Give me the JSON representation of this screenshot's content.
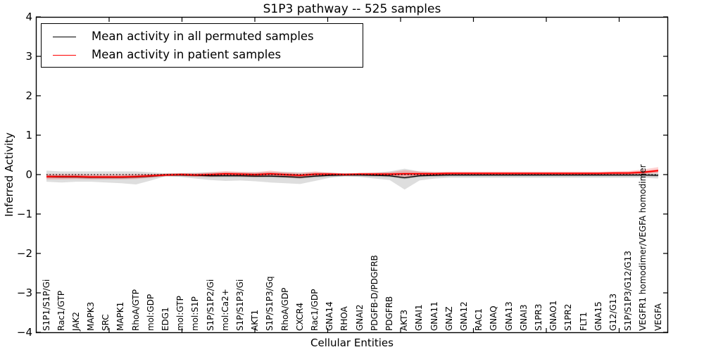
{
  "chart_data": {
    "type": "line",
    "title": "S1P3 pathway -- 525 samples",
    "xlabel": "Cellular Entities",
    "ylabel": "Inferred Activity",
    "ylim": [
      -4,
      4
    ],
    "yticks": [
      -4,
      -3,
      -2,
      -1,
      0,
      1,
      2,
      3,
      4
    ],
    "grid": false,
    "zero_line_style": "dotted",
    "legend_position": "upper left",
    "categories": [
      "S1P1/S1P/Gi",
      "Rac1/GTP",
      "JAK2",
      "MAPK3",
      "SRC",
      "MAPK1",
      "RhoA/GTP",
      "mol:GDP",
      "EDG1",
      "mol:GTP",
      "mol:S1P",
      "S1P/S1P2/Gi",
      "mol:Ca2+",
      "S1P/S1P3/Gi",
      "AKT1",
      "S1P/S1P3/Gq",
      "RhoA/GDP",
      "CXCR4",
      "Rac1/GDP",
      "GNA14",
      "RHOA",
      "GNAI2",
      "PDGFB-D/PDGFRB",
      "PDGFRB",
      "AKT3",
      "GNAI1",
      "GNA11",
      "GNAZ",
      "GNA12",
      "RAC1",
      "GNAQ",
      "GNA13",
      "GNAI3",
      "S1PR3",
      "GNAO1",
      "S1PR2",
      "FLT1",
      "GNA15",
      "G12/G13",
      "S1P/S1P3/G12/G13",
      "VEGFR1 homodimer/VEGFA homodimer",
      "VEGFA"
    ],
    "series": [
      {
        "name": "Mean activity in all permuted samples",
        "color": "#000000",
        "line_width": 1.3,
        "band_fill": "rgba(0,0,0,0.13)",
        "band_core_fill": "rgba(0,0,0,0.16)",
        "values": [
          -0.05,
          -0.06,
          -0.06,
          -0.07,
          -0.07,
          -0.07,
          -0.06,
          -0.04,
          -0.01,
          -0.01,
          -0.02,
          -0.03,
          -0.03,
          -0.03,
          -0.04,
          -0.04,
          -0.05,
          -0.07,
          -0.04,
          -0.02,
          -0.01,
          -0.01,
          -0.02,
          -0.03,
          -0.08,
          -0.03,
          -0.02,
          -0.01,
          -0.01,
          -0.01,
          -0.01,
          -0.01,
          -0.01,
          -0.01,
          -0.01,
          -0.01,
          -0.01,
          -0.01,
          -0.01,
          -0.01,
          -0.01,
          -0.02
        ],
        "band_lower": [
          -0.18,
          -0.2,
          -0.18,
          -0.18,
          -0.2,
          -0.22,
          -0.25,
          -0.15,
          -0.04,
          -0.06,
          -0.1,
          -0.14,
          -0.16,
          -0.15,
          -0.17,
          -0.2,
          -0.22,
          -0.24,
          -0.16,
          -0.08,
          -0.04,
          -0.06,
          -0.1,
          -0.14,
          -0.38,
          -0.15,
          -0.1,
          -0.08,
          -0.08,
          -0.08,
          -0.08,
          -0.08,
          -0.08,
          -0.08,
          -0.08,
          -0.08,
          -0.08,
          -0.08,
          -0.08,
          -0.08,
          -0.08,
          -0.1
        ],
        "band_upper": [
          0.1,
          0.08,
          0.08,
          0.08,
          0.08,
          0.08,
          0.08,
          0.06,
          0.03,
          0.04,
          0.05,
          0.06,
          0.06,
          0.06,
          0.06,
          0.07,
          0.07,
          0.06,
          0.06,
          0.05,
          0.03,
          0.04,
          0.05,
          0.08,
          0.15,
          0.08,
          0.06,
          0.05,
          0.05,
          0.05,
          0.05,
          0.05,
          0.05,
          0.05,
          0.05,
          0.05,
          0.05,
          0.05,
          0.05,
          0.05,
          0.06,
          0.06
        ]
      },
      {
        "name": "Mean activity in patient samples",
        "color": "#ff0000",
        "line_width": 1.7,
        "band_fill": "rgba(255,0,0,0.18)",
        "band_core_fill": "rgba(255,0,0,0.38)",
        "values": [
          -0.05,
          -0.05,
          -0.05,
          -0.06,
          -0.06,
          -0.06,
          -0.05,
          -0.03,
          -0.01,
          0,
          -0.01,
          0,
          0.02,
          0.01,
          0,
          0.02,
          0,
          -0.02,
          0.01,
          0.01,
          0,
          0.01,
          0.01,
          0.01,
          0.02,
          0.02,
          0.02,
          0.03,
          0.03,
          0.03,
          0.03,
          0.03,
          0.03,
          0.03,
          0.03,
          0.03,
          0.03,
          0.03,
          0.04,
          0.04,
          0.06,
          0.1
        ],
        "band_lower": [
          -0.12,
          -0.12,
          -0.11,
          -0.12,
          -0.12,
          -0.12,
          -0.11,
          -0.08,
          -0.03,
          -0.03,
          -0.05,
          -0.06,
          -0.04,
          -0.05,
          -0.06,
          -0.05,
          -0.07,
          -0.09,
          -0.05,
          -0.03,
          -0.02,
          -0.02,
          -0.03,
          -0.04,
          -0.06,
          -0.04,
          -0.02,
          -0.01,
          -0.01,
          -0.01,
          -0.01,
          -0.01,
          -0.01,
          -0.01,
          0,
          0,
          0,
          0,
          0,
          0,
          0.01,
          0.04
        ],
        "band_upper": [
          0.02,
          0.02,
          0.02,
          0.01,
          0.01,
          0.01,
          0.02,
          0.02,
          0.02,
          0.03,
          0.03,
          0.06,
          0.09,
          0.07,
          0.06,
          0.1,
          0.06,
          0.04,
          0.08,
          0.05,
          0.03,
          0.04,
          0.05,
          0.06,
          0.11,
          0.08,
          0.07,
          0.07,
          0.07,
          0.07,
          0.07,
          0.07,
          0.07,
          0.07,
          0.07,
          0.07,
          0.07,
          0.07,
          0.08,
          0.09,
          0.13,
          0.19
        ]
      }
    ]
  }
}
